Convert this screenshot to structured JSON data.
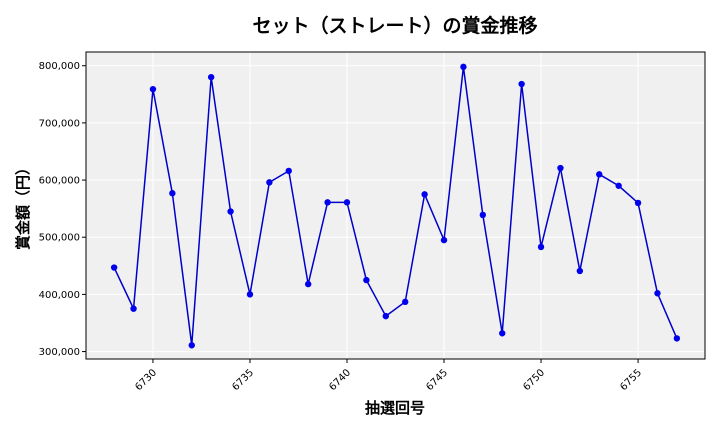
{
  "chart_data": {
    "type": "line",
    "title": "セット（ストレート）の賞金推移",
    "xlabel": "抽選回号",
    "ylabel": "賞金額（円）",
    "grid": true,
    "xlim": [
      6726.55,
      6758.45
    ],
    "ylim": [
      287000,
      824000
    ],
    "xticks": [
      6730,
      6735,
      6740,
      6745,
      6750,
      6755
    ],
    "yticks": [
      300000,
      400000,
      500000,
      600000,
      700000,
      800000
    ],
    "ytick_labels": [
      "300,000",
      "400,000",
      "500,000",
      "600,000",
      "700,000",
      "800,000"
    ],
    "series": [
      {
        "color": "#0000cc",
        "x": [
          6728,
          6729,
          6730,
          6731,
          6732,
          6733,
          6734,
          6735,
          6736,
          6737,
          6738,
          6739,
          6740,
          6741,
          6742,
          6743,
          6744,
          6745,
          6746,
          6747,
          6748,
          6749,
          6750,
          6751,
          6752,
          6753,
          6754,
          6755,
          6756,
          6757
        ],
        "y": [
          447000,
          375000,
          759000,
          577000,
          311000,
          780000,
          545000,
          400000,
          596000,
          616000,
          418000,
          561000,
          561000,
          425000,
          362000,
          387000,
          575000,
          495000,
          798000,
          539000,
          332000,
          768000,
          483000,
          621000,
          441000,
          610000,
          590000,
          560000,
          402000,
          323000
        ]
      }
    ],
    "colors": {
      "plot_bg": "#f0f0f0",
      "grid": "#ffffff",
      "line": "#0000cc",
      "marker": "#0000ee"
    }
  }
}
